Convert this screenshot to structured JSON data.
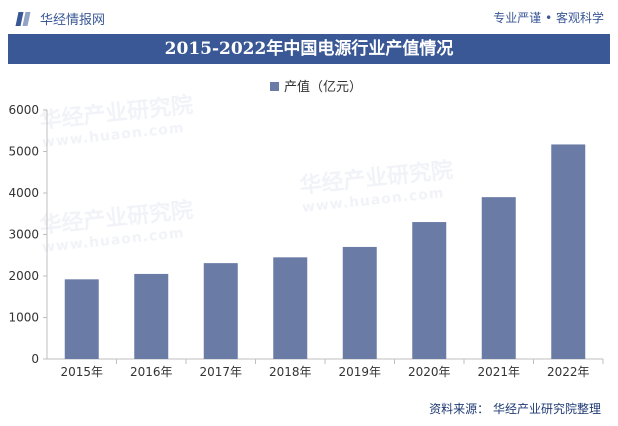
{
  "header": {
    "brand_name": "华经情报网",
    "slogan": "专业严谨 • 客观科学"
  },
  "chart_data": {
    "type": "bar",
    "title": "2015-2022年中国电源行业产值情况",
    "categories": [
      "2015年",
      "2016年",
      "2017年",
      "2018年",
      "2019年",
      "2020年",
      "2021年",
      "2022年"
    ],
    "series": [
      {
        "name": "产值（亿元）",
        "values": [
          1920,
          2050,
          2310,
          2450,
          2700,
          3300,
          3900,
          5170
        ]
      }
    ],
    "ylim": [
      0,
      6000
    ],
    "yticks": [
      0,
      1000,
      2000,
      3000,
      4000,
      5000,
      6000
    ],
    "legend_position": "top-center",
    "grid": false,
    "bar_color": "#6a7ba6"
  },
  "watermark": {
    "cn": "华经产业研究院",
    "en": "www.huaon.com"
  },
  "footer": {
    "source": "资料来源：  华经产业研究院整理"
  }
}
